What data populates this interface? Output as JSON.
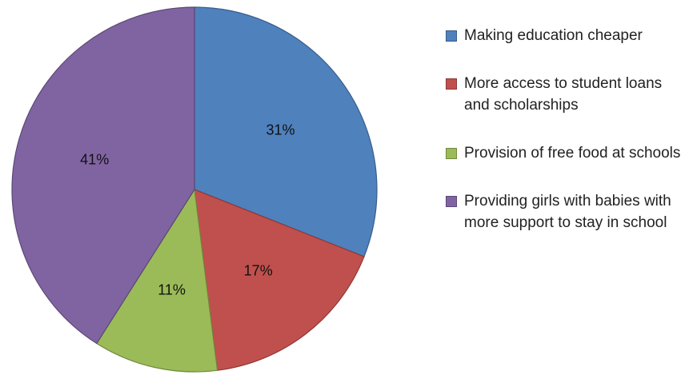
{
  "chart_data": {
    "type": "pie",
    "categories": [
      "Making education cheaper",
      "More access to student loans and scholarships",
      "Provision of free food at schools",
      "Providing girls with babies with more support to stay in school"
    ],
    "values": [
      31,
      17,
      11,
      41
    ],
    "labels": [
      "31%",
      "17%",
      "11%",
      "41%"
    ],
    "colors": [
      "#4F81BD",
      "#C0504D",
      "#9BBB59",
      "#8064A2"
    ],
    "edge_colors": [
      "#385D8A",
      "#8C3836",
      "#71893F",
      "#5C4776"
    ],
    "legend_position": "right",
    "start": "12 o'clock, clockwise"
  }
}
